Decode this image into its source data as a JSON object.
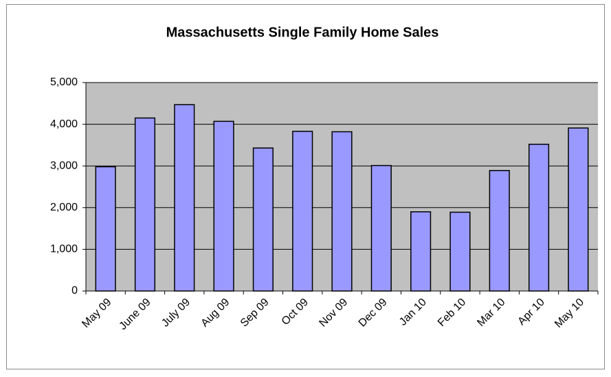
{
  "chart_data": {
    "type": "bar",
    "title": "Massachusetts Single Family Home Sales",
    "categories": [
      "May 09",
      "June 09",
      "July 09",
      "Aug 09",
      "Sep 09",
      "Oct 09",
      "Nov 09",
      "Dec 09",
      "Jan 10",
      "Feb 10",
      "Mar 10",
      "Apr 10",
      "May 10"
    ],
    "values": [
      2980,
      4150,
      4470,
      4070,
      3430,
      3830,
      3820,
      3010,
      1900,
      1890,
      2890,
      3520,
      3910
    ],
    "color": "#9999ff",
    "ylim": [
      0,
      5000
    ],
    "yticks": [
      0,
      {
        "value": 1000,
        "label": "1,000"
      },
      {
        "value": 2000,
        "label": "2,000"
      },
      {
        "value": 3000,
        "label": "3,000"
      },
      {
        "value": 4000,
        "label": "4,000"
      },
      {
        "value": 5000,
        "label": "5,000"
      }
    ],
    "grid": true
  }
}
